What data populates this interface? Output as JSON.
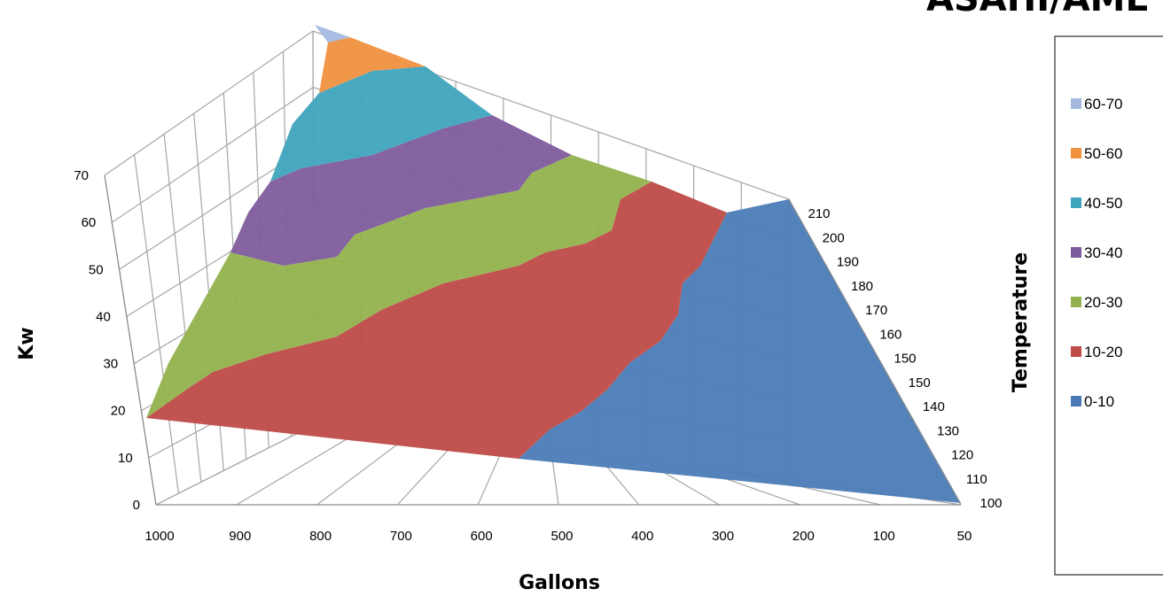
{
  "chart_data": {
    "type": "surface",
    "banner_text": "ASAHI/AME",
    "x_axis": {
      "label": "Gallons",
      "ticks": [
        "1000",
        "900",
        "800",
        "700",
        "600",
        "500",
        "400",
        "300",
        "200",
        "100",
        "50"
      ]
    },
    "y_axis": {
      "label": "Kw",
      "ticks": [
        "0",
        "10",
        "20",
        "30",
        "40",
        "50",
        "60",
        "70"
      ],
      "range": [
        0,
        70
      ]
    },
    "depth_axis": {
      "label": "Temperature",
      "ticks": [
        "100",
        "110",
        "120",
        "130",
        "140",
        "150",
        "150",
        "160",
        "170",
        "180",
        "190",
        "200",
        "210"
      ]
    },
    "legend": {
      "placement": "right",
      "entries": [
        {
          "label": "60-70",
          "color": "#a5b9e0"
        },
        {
          "label": "50-60",
          "color": "#f0913f"
        },
        {
          "label": "40-50",
          "color": "#3fa4bd"
        },
        {
          "label": "30-40",
          "color": "#7e5c9c"
        },
        {
          "label": "20-30",
          "color": "#93b24e"
        },
        {
          "label": "10-20",
          "color": "#be4b48"
        },
        {
          "label": "0-10",
          "color": "#4b7bb6"
        }
      ]
    },
    "bands": [
      {
        "range": "0-10",
        "color": "#4b7bb6"
      },
      {
        "range": "10-20",
        "color": "#be4b48"
      },
      {
        "range": "20-30",
        "color": "#93b24e"
      },
      {
        "range": "30-40",
        "color": "#7e5c9c"
      },
      {
        "range": "40-50",
        "color": "#3fa4bd"
      },
      {
        "range": "50-60",
        "color": "#f0913f"
      },
      {
        "range": "60-70",
        "color": "#a5b9e0"
      }
    ],
    "grid": true
  }
}
